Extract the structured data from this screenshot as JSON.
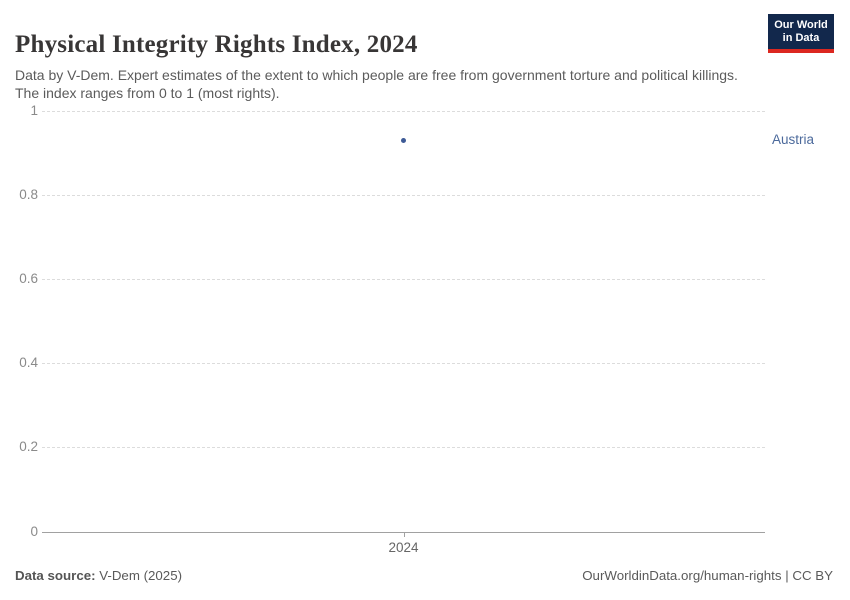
{
  "header": {
    "title": "Physical Integrity Rights Index, 2024",
    "subtitle": "Data by V-Dem. Expert estimates of the extent to which people are free from government torture and political killings. The index ranges from 0 to 1 (most rights).",
    "logo": {
      "line1": "Our World",
      "line2": "in Data",
      "bg_color": "#12284c",
      "accent_color": "#dc2820"
    }
  },
  "chart_data": {
    "type": "scatter",
    "title": "Physical Integrity Rights Index, 2024",
    "xlabel": "",
    "ylabel": "",
    "x": [
      2024
    ],
    "xticks": [
      "2024"
    ],
    "yticks": [
      0,
      0.2,
      0.4,
      0.6,
      0.8,
      1
    ],
    "ylim": [
      0,
      1
    ],
    "grid": "horizontal-dashed",
    "legend_position": "right-of-point",
    "series": [
      {
        "name": "Austria",
        "x": [
          2024
        ],
        "values": [
          0.93
        ],
        "color": "#3d5a96",
        "label_color": "#4c6a9c"
      }
    ]
  },
  "footer": {
    "source_label": "Data source:",
    "source_value": " V-Dem (2025)",
    "credit": "OurWorldinData.org/human-rights | CC BY"
  }
}
